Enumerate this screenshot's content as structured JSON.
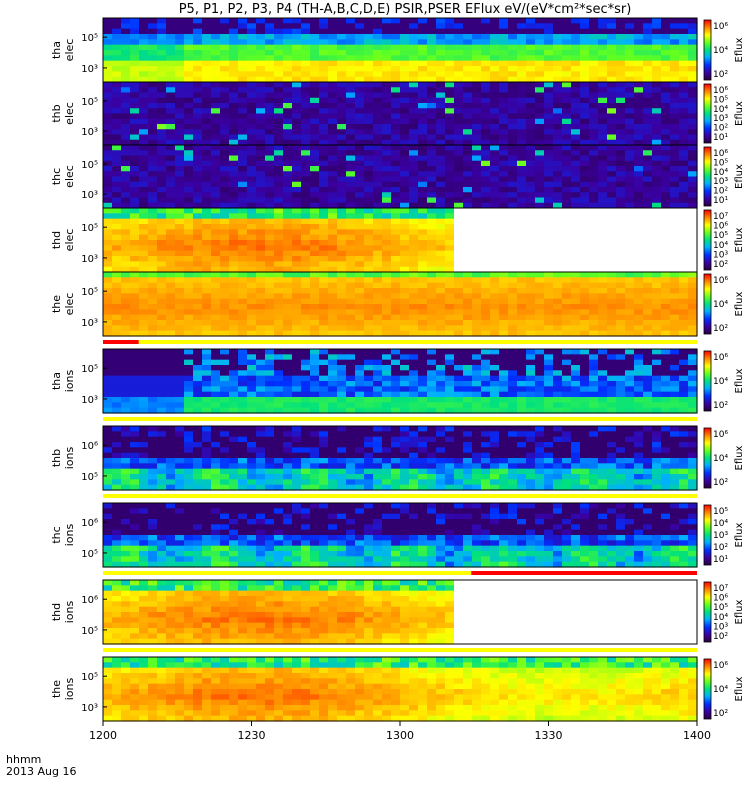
{
  "title": "P5, P1, P2, P3, P4 (TH-A,B,C,D,E) PSIR,PSER EFlux eV/(eV*cm²*sec*sr)",
  "time_axis": {
    "label_line1": "hhmm",
    "label_line2": "2013 Aug 16",
    "ticks": [
      "1200",
      "1230",
      "1300",
      "1330",
      "1400"
    ]
  },
  "colorbar_label": "Eflux",
  "chart_data": {
    "type": "heatmap",
    "x_range": [
      "1200",
      "1400"
    ],
    "panels": [
      {
        "name": "tha elec",
        "ylabel": [
          "tha",
          "elec"
        ],
        "yticks": [
          "10⁵",
          "10³"
        ],
        "cbar_ticks": [
          "10⁶",
          "10⁴",
          "10²"
        ],
        "pattern": "low-burst",
        "quality_bar": "none",
        "white_after": null
      },
      {
        "name": "thb elec",
        "ylabel": [
          "thb",
          "elec"
        ],
        "yticks": [
          "10⁵",
          "10³"
        ],
        "cbar_ticks": [
          "10⁶",
          "10⁵",
          "10⁴",
          "10³",
          "10²",
          "10¹"
        ],
        "pattern": "sparse",
        "quality_bar": "none",
        "white_after": null
      },
      {
        "name": "thc elec",
        "ylabel": [
          "thc",
          "elec"
        ],
        "yticks": [
          "10⁵",
          "10³"
        ],
        "cbar_ticks": [
          "10⁶",
          "10⁵",
          "10⁴",
          "10³",
          "10²",
          "10¹"
        ],
        "pattern": "sparse",
        "quality_bar": "none",
        "white_after": null
      },
      {
        "name": "thd elec",
        "ylabel": [
          "thd",
          "elec"
        ],
        "yticks": [
          "10⁵",
          "10³"
        ],
        "cbar_ticks": [
          "10⁷",
          "10⁶",
          "10⁵",
          "10⁴",
          "10³",
          "10²"
        ],
        "pattern": "bright",
        "quality_bar": "none",
        "white_after": 0.59
      },
      {
        "name": "the elec",
        "ylabel": [
          "the",
          "elec"
        ],
        "yticks": [
          "10⁵",
          "10³"
        ],
        "cbar_ticks": [
          "10⁶",
          "10⁴",
          "10²"
        ],
        "pattern": "bright-red",
        "quality_bar": "red-start",
        "white_after": null
      },
      {
        "name": "tha ions",
        "ylabel": [
          "tha",
          "ions"
        ],
        "yticks": [
          "10⁵",
          "10³"
        ],
        "cbar_ticks": [
          "10⁶",
          "10⁴",
          "10²"
        ],
        "pattern": "ion-burst",
        "quality_bar": "yellow",
        "white_after": null
      },
      {
        "name": "thb ions",
        "ylabel": [
          "thb",
          "ions"
        ],
        "yticks": [
          "10⁶",
          "10⁵"
        ],
        "cbar_ticks": [
          "10⁶",
          "10⁴",
          "10²"
        ],
        "pattern": "ion-band",
        "quality_bar": "yellow",
        "white_after": null
      },
      {
        "name": "thc ions",
        "ylabel": [
          "thc",
          "ions"
        ],
        "yticks": [
          "10⁶",
          "10⁵"
        ],
        "cbar_ticks": [
          "10⁵",
          "10⁴",
          "10³",
          "10²",
          "10¹"
        ],
        "pattern": "ion-band",
        "quality_bar": "yellow-red",
        "white_after": null
      },
      {
        "name": "thd ions",
        "ylabel": [
          "thd",
          "ions"
        ],
        "yticks": [
          "10⁶",
          "10⁵"
        ],
        "cbar_ticks": [
          "10⁷",
          "10⁶",
          "10⁵",
          "10⁴",
          "10³",
          "10²"
        ],
        "pattern": "bright",
        "quality_bar": "yellow",
        "white_after": 0.59
      },
      {
        "name": "the ions",
        "ylabel": [
          "the",
          "ions"
        ],
        "yticks": [
          "10⁵",
          "10³"
        ],
        "cbar_ticks": [
          "10⁶",
          "10⁴",
          "10²"
        ],
        "pattern": "bright",
        "quality_bar": "none",
        "white_after": null
      }
    ]
  }
}
